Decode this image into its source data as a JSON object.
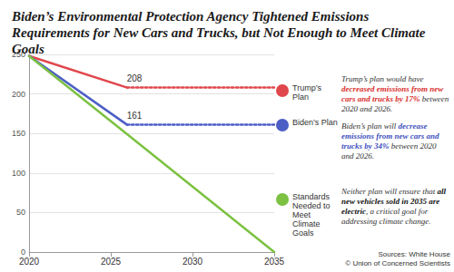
{
  "chart_data": {
    "type": "line",
    "title": "Biden’s Environmental Protection Agency Tightened Emissions Requirements for New Cars and Trucks, but Not Enough to Meet Climate Goals",
    "x": [
      2020,
      2026,
      2035
    ],
    "xlim": [
      2020,
      2035
    ],
    "xticks": [
      2020,
      2025,
      2030,
      2035
    ],
    "ylim": [
      0,
      250
    ],
    "yticks": [
      0,
      50,
      100,
      150,
      200,
      250
    ],
    "grid": true,
    "legend": "right",
    "data_labels": true,
    "series": [
      {
        "name": "Trump’s Plan",
        "color": "#e0474c",
        "line_style": "solid",
        "values": [
          248,
          208,
          null
        ],
        "value_labels": [
          null,
          "208",
          null
        ]
      },
      {
        "name": "Trump’s Plan",
        "color": "#e0474c",
        "line_style": "dotted",
        "values": [
          null,
          208,
          208
        ]
      },
      {
        "name": "Biden’s Plan",
        "color": "#4c5ec6",
        "line_style": "solid",
        "values": [
          248,
          161,
          null
        ],
        "value_labels": [
          null,
          "161",
          null
        ]
      },
      {
        "name": "Biden’s Plan",
        "color": "#4c5ec6",
        "line_style": "dotted",
        "values": [
          null,
          161,
          161
        ]
      },
      {
        "name": "Standards Needed to Meet Climate Goals",
        "color": "#7cc142",
        "line_style": "solid",
        "values": [
          248,
          149,
          0
        ]
      }
    ],
    "annotations": [
      {
        "parts": [
          {
            "text": "Trump’s plan would have "
          },
          {
            "text": "decreased emissions from new cars and trucks by 17%",
            "color": "#d9302f"
          },
          {
            "text": " between 2020 and 2026."
          }
        ]
      },
      {
        "parts": [
          {
            "text": "Biden’s plan will "
          },
          {
            "text": "decrease emissions from new cars and trucks by 34%",
            "color": "#3f51c0"
          },
          {
            "text": " between 2020 and 2026."
          }
        ]
      },
      {
        "parts": [
          {
            "text": "Neither plan will ensure that "
          },
          {
            "text": "all new vehicles sold in 2035 are electric",
            "color": "#111111"
          },
          {
            "text": ", a critical goal for addressing climate change."
          }
        ]
      }
    ],
    "source": [
      "Sources: White House",
      "© Union of Concerned Scientists"
    ]
  }
}
